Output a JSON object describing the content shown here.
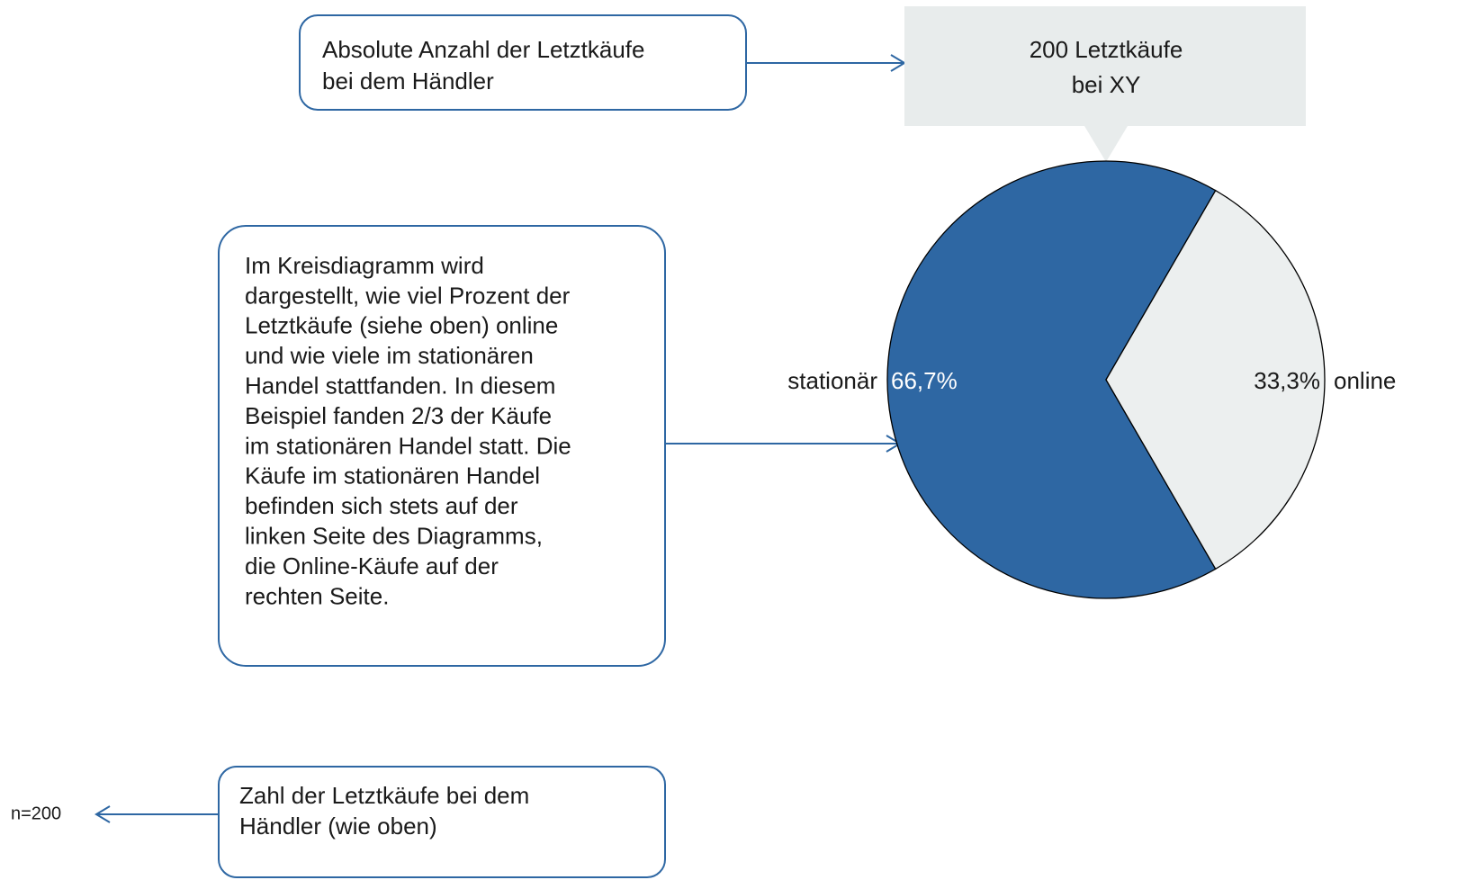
{
  "chart_data": {
    "type": "pie",
    "title": [
      "200 Letztkäufe",
      "bei XY"
    ],
    "categories": [
      "stationär",
      "online"
    ],
    "values": [
      66.7,
      33.3
    ],
    "value_labels": [
      "66,7%",
      "33,3%"
    ],
    "colors": [
      "#2e67a3",
      "#ecefef"
    ],
    "n_label": "n=200"
  },
  "annotations": [
    {
      "lines": [
        "Absolute Anzahl der Letztkäufe",
        "bei dem Händler"
      ]
    },
    {
      "lines": [
        "Im Kreisdiagramm wird",
        "dargestellt, wie viel Prozent der",
        "Letztkäufe (siehe oben) online",
        "und wie viele im stationären",
        "Handel stattfanden. In diesem",
        "Beispiel fanden 2/3 der Käufe",
        "im stationären Handel statt. Die",
        "Käufe im stationären Handel",
        "befinden sich stets auf der",
        "linken Seite des Diagramms,",
        "die Online-Käufe auf der",
        "rechten Seite."
      ]
    },
    {
      "lines": [
        "Zahl der Letztkäufe bei dem",
        "Händler (wie oben)"
      ]
    }
  ]
}
